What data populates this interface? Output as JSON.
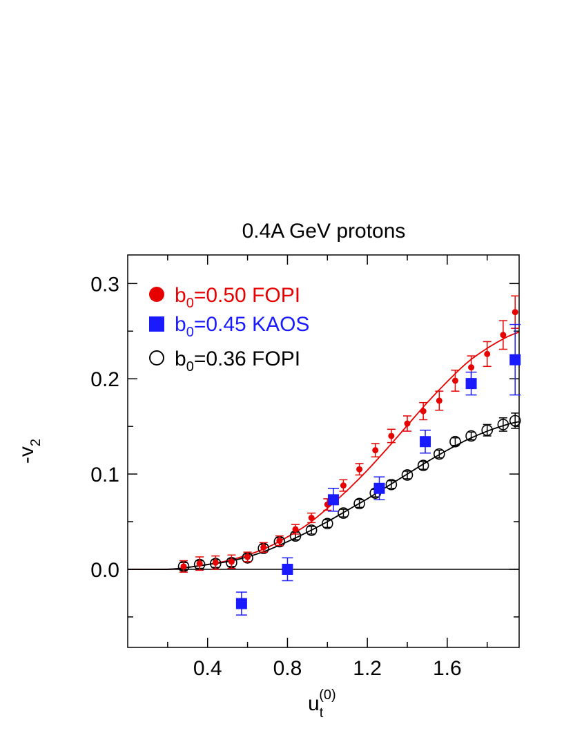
{
  "chart_data": {
    "type": "scatter",
    "title": "0.4A GeV protons",
    "xlabel": {
      "base": "u",
      "sub": "t",
      "sup": "(0)"
    },
    "ylabel": {
      "base": "-v",
      "sub": "2"
    },
    "xlim": [
      0.0,
      1.96
    ],
    "ylim": [
      -0.082,
      0.33
    ],
    "x_ticks": [
      0.4,
      0.8,
      1.2,
      1.6
    ],
    "x_tick_labels": [
      "0.4",
      "0.8",
      "1.2",
      "1.6"
    ],
    "y_ticks": [
      0.0,
      0.1,
      0.2,
      0.3
    ],
    "y_tick_labels": [
      "0.0",
      "0.1",
      "0.2",
      "0.3"
    ],
    "zero_line": true,
    "series": [
      {
        "name": "b0=0.50 FOPI",
        "legend": {
          "pre": "b",
          "sub": "0",
          "post": "=0.50 FOPI"
        },
        "color": "#e60000",
        "marker": "filled-circle",
        "x": [
          0.28,
          0.36,
          0.44,
          0.52,
          0.6,
          0.68,
          0.76,
          0.84,
          0.92,
          1.0,
          1.08,
          1.16,
          1.24,
          1.32,
          1.4,
          1.48,
          1.56,
          1.64,
          1.72,
          1.8,
          1.88,
          1.94
        ],
        "y": [
          0.003,
          0.006,
          0.007,
          0.008,
          0.013,
          0.023,
          0.03,
          0.042,
          0.054,
          0.068,
          0.088,
          0.105,
          0.125,
          0.14,
          0.153,
          0.166,
          0.177,
          0.198,
          0.212,
          0.226,
          0.246,
          0.27
        ],
        "err": [
          0.006,
          0.007,
          0.007,
          0.007,
          0.005,
          0.005,
          0.005,
          0.005,
          0.005,
          0.006,
          0.006,
          0.006,
          0.007,
          0.007,
          0.008,
          0.009,
          0.01,
          0.011,
          0.012,
          0.013,
          0.015,
          0.017
        ]
      },
      {
        "name": "b0=0.45 KAOS",
        "legend": {
          "pre": "b",
          "sub": "0",
          "post": "=0.45 KAOS"
        },
        "color": "#1a1aff",
        "marker": "filled-square",
        "x": [
          0.57,
          0.8,
          1.03,
          1.26,
          1.49,
          1.72,
          1.94
        ],
        "y": [
          -0.036,
          0.0,
          0.073,
          0.085,
          0.134,
          0.195,
          0.22
        ],
        "err": [
          0.012,
          0.012,
          0.012,
          0.012,
          0.012,
          0.012,
          0.037
        ]
      },
      {
        "name": "b0=0.36 FOPI",
        "legend": {
          "pre": "b",
          "sub": "0",
          "post": "=0.36 FOPI"
        },
        "color": "#000000",
        "marker": "open-circle",
        "x": [
          0.28,
          0.36,
          0.44,
          0.52,
          0.6,
          0.68,
          0.76,
          0.84,
          0.92,
          1.0,
          1.08,
          1.16,
          1.24,
          1.32,
          1.4,
          1.48,
          1.56,
          1.64,
          1.72,
          1.8,
          1.88,
          1.94
        ],
        "y": [
          0.003,
          0.005,
          0.006,
          0.007,
          0.012,
          0.022,
          0.029,
          0.035,
          0.041,
          0.048,
          0.059,
          0.069,
          0.08,
          0.089,
          0.099,
          0.109,
          0.121,
          0.134,
          0.14,
          0.146,
          0.152,
          0.156
        ],
        "err": [
          0.004,
          0.004,
          0.004,
          0.004,
          0.004,
          0.004,
          0.004,
          0.004,
          0.004,
          0.004,
          0.004,
          0.004,
          0.004,
          0.004,
          0.004,
          0.004,
          0.004,
          0.004,
          0.004,
          0.006,
          0.007,
          0.008
        ]
      }
    ],
    "fit_curves": [
      {
        "name": "fit b0=0.50 FOPI",
        "color": "#e60000",
        "x": [
          0.0,
          0.2,
          0.3,
          0.4,
          0.5,
          0.6,
          0.7,
          0.8,
          0.9,
          1.0,
          1.1,
          1.2,
          1.3,
          1.4,
          1.5,
          1.6,
          1.7,
          1.8,
          1.9,
          1.96
        ],
        "y": [
          0.0,
          0.0,
          0.002,
          0.005,
          0.009,
          0.015,
          0.023,
          0.034,
          0.047,
          0.064,
          0.083,
          0.104,
          0.127,
          0.151,
          0.175,
          0.197,
          0.217,
          0.232,
          0.244,
          0.249
        ]
      },
      {
        "name": "fit b0=0.36 FOPI",
        "color": "#000000",
        "x": [
          0.0,
          0.2,
          0.3,
          0.4,
          0.5,
          0.6,
          0.7,
          0.8,
          0.9,
          1.0,
          1.1,
          1.2,
          1.3,
          1.4,
          1.5,
          1.6,
          1.7,
          1.8,
          1.9,
          1.96
        ],
        "y": [
          0.0,
          0.0,
          0.002,
          0.005,
          0.008,
          0.013,
          0.02,
          0.029,
          0.039,
          0.05,
          0.062,
          0.074,
          0.087,
          0.1,
          0.113,
          0.125,
          0.136,
          0.145,
          0.152,
          0.155
        ]
      }
    ],
    "legend_position": "top-left"
  }
}
